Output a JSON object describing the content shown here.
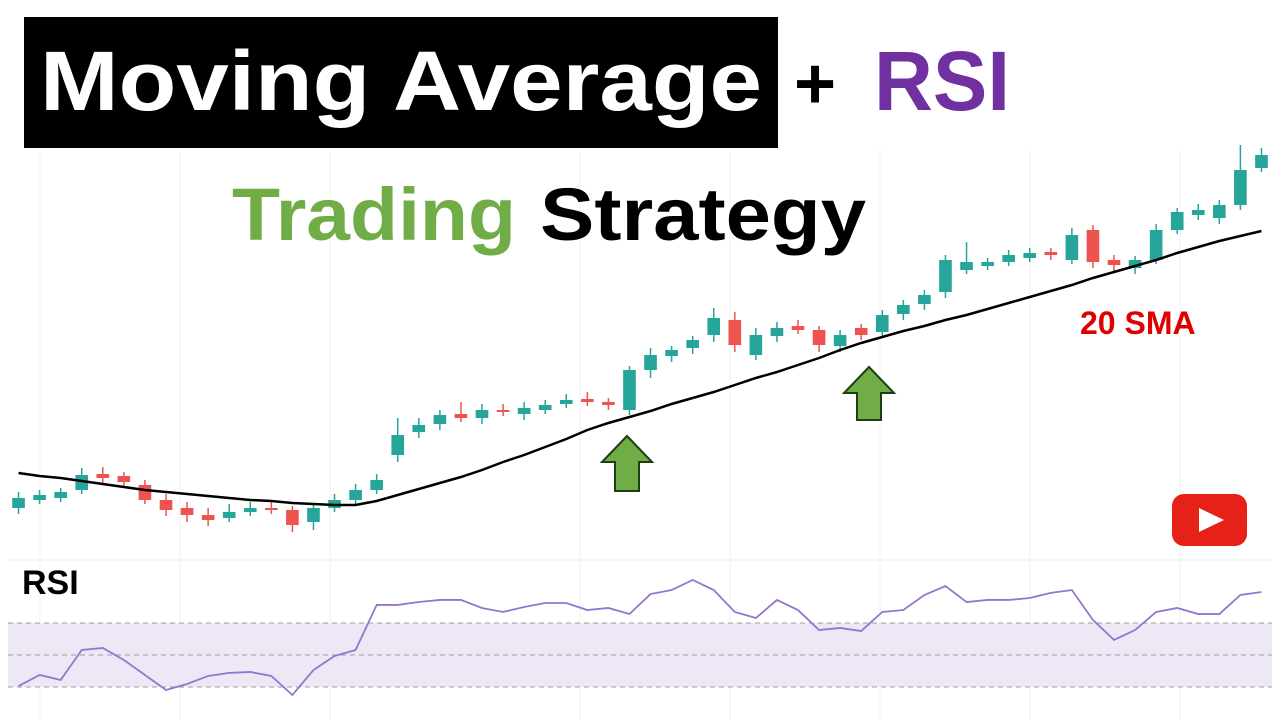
{
  "chart_data": [
    {
      "type": "candlestick",
      "title_parts": [
        "Moving Average",
        "+",
        "RSI"
      ],
      "subtitle_parts": [
        "Trading",
        "Strategy"
      ],
      "ylim": [
        0,
        410
      ],
      "up_color": "#26a69a",
      "down_color": "#ef5350",
      "open": [
        52,
        60,
        62,
        70,
        86,
        84,
        75,
        60,
        52,
        45,
        42,
        48,
        52,
        50,
        38,
        52,
        60,
        70,
        105,
        128,
        136,
        146,
        142,
        150,
        146,
        150,
        156,
        161,
        158,
        150,
        190,
        204,
        212,
        225,
        240,
        205,
        224,
        234,
        230,
        214,
        232,
        228,
        246,
        256,
        268,
        290,
        294,
        298,
        302,
        308,
        300,
        330,
        300,
        292,
        300,
        330,
        345,
        342,
        355,
        392
      ],
      "high": [
        68,
        70,
        72,
        92,
        93,
        88,
        80,
        66,
        58,
        52,
        56,
        58,
        58,
        54,
        56,
        66,
        76,
        86,
        142,
        142,
        150,
        158,
        156,
        156,
        158,
        160,
        166,
        168,
        162,
        194,
        212,
        214,
        224,
        252,
        248,
        232,
        238,
        240,
        234,
        230,
        236,
        250,
        260,
        270,
        305,
        318,
        302,
        310,
        312,
        312,
        332,
        335,
        305,
        304,
        336,
        352,
        356,
        360,
        415,
        412
      ],
      "low": [
        46,
        56,
        58,
        66,
        76,
        72,
        56,
        44,
        38,
        34,
        38,
        44,
        46,
        28,
        30,
        48,
        56,
        66,
        98,
        122,
        130,
        138,
        136,
        144,
        140,
        146,
        152,
        154,
        150,
        145,
        182,
        198,
        206,
        218,
        208,
        200,
        218,
        226,
        208,
        208,
        220,
        224,
        240,
        250,
        262,
        286,
        290,
        294,
        298,
        300,
        296,
        292,
        288,
        286,
        296,
        326,
        340,
        336,
        350,
        388
      ],
      "close": [
        62,
        65,
        68,
        85,
        82,
        78,
        60,
        50,
        45,
        40,
        48,
        52,
        50,
        35,
        52,
        60,
        70,
        80,
        125,
        135,
        145,
        142,
        150,
        148,
        152,
        155,
        160,
        158,
        155,
        190,
        205,
        210,
        220,
        242,
        215,
        225,
        232,
        230,
        215,
        225,
        225,
        245,
        255,
        265,
        300,
        298,
        298,
        305,
        307,
        305,
        325,
        298,
        295,
        300,
        330,
        348,
        350,
        355,
        390,
        405
      ],
      "series": [
        {
          "name": "20 SMA",
          "color": "#e00000",
          "line_color": "#000000",
          "values": [
            87,
            84,
            82,
            79,
            76,
            73,
            70,
            68,
            66,
            64,
            62,
            60,
            59,
            57,
            56,
            55,
            55,
            59,
            65,
            71,
            77,
            83,
            90,
            98,
            105,
            113,
            121,
            130,
            137,
            143,
            149,
            156,
            162,
            168,
            175,
            182,
            188,
            195,
            202,
            210,
            217,
            223,
            229,
            234,
            240,
            245,
            251,
            257,
            263,
            269,
            275,
            282,
            288,
            294,
            300,
            307,
            313,
            319,
            324,
            329
          ]
        }
      ]
    },
    {
      "type": "line",
      "title": "RSI",
      "ylim": [
        10,
        100
      ],
      "levels": [
        70,
        50,
        30
      ],
      "band_color": "#ede7f6",
      "series": [
        {
          "color": "#9575cd",
          "values": [
            30.6,
            37.5,
            34.4,
            53.1,
            54.4,
            46.9,
            37.5,
            28.1,
            31.9,
            36.9,
            38.8,
            39.4,
            36.9,
            25,
            40.6,
            49.4,
            53.1,
            81.3,
            81.3,
            83.1,
            84.4,
            84.4,
            79.4,
            76.9,
            80,
            82.5,
            82.5,
            78.1,
            79.4,
            75.6,
            88.1,
            90.6,
            96.9,
            90.6,
            76.9,
            73.1,
            84.4,
            78.1,
            65.6,
            66.9,
            65,
            76.9,
            78.1,
            87.5,
            93.1,
            83.1,
            84.4,
            84.4,
            85.6,
            88.8,
            90.6,
            71.9,
            59.4,
            65.6,
            76.9,
            79.4,
            75.6,
            75.6,
            87.5,
            89.4
          ]
        }
      ]
    }
  ]
}
